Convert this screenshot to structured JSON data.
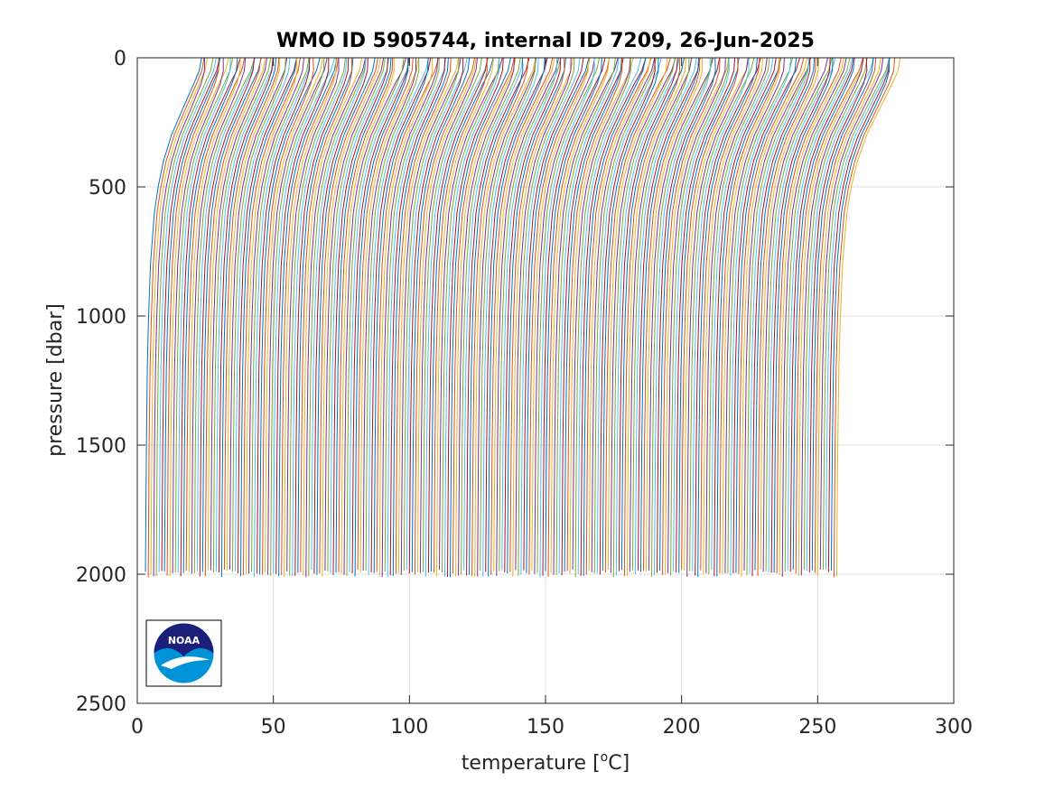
{
  "chart_data": {
    "type": "line",
    "title": "WMO ID 5905744, internal ID 7209, 26-Jun-2025",
    "xlabel_prefix": "temperature [",
    "xlabel_sup": "o",
    "xlabel_suffix": "C]",
    "ylabel": "pressure [dbar]",
    "xlim": [
      0,
      300
    ],
    "ylim": [
      0,
      2500
    ],
    "y_reversed": true,
    "grid": true,
    "x_ticks": [
      0,
      50,
      100,
      150,
      200,
      250,
      300
    ],
    "y_ticks": [
      0,
      500,
      1000,
      1500,
      2000,
      2500
    ],
    "x_tick_labels": [
      "0",
      "50",
      "100",
      "150",
      "200",
      "250",
      "300"
    ],
    "y_tick_labels": [
      "0",
      "500",
      "1000",
      "1500",
      "2000",
      "2500"
    ],
    "profiles": {
      "count": 255,
      "deep_start_temperature": 3.0,
      "deep_end_temperature": 257.0,
      "surface_start_temperature": 23.0,
      "surface_end_temperature": 280.0,
      "max_pressure": 2000,
      "representative_profile": {
        "pressure": [
          0,
          50,
          100,
          200,
          300,
          400,
          500,
          600,
          800,
          1000,
          1200,
          1500,
          2000
        ],
        "temperature": [
          20.0,
          19.5,
          18.0,
          14.5,
          11.0,
          8.5,
          6.8,
          5.6,
          4.4,
          3.8,
          3.4,
          3.1,
          2.8
        ]
      }
    },
    "series_colors": [
      "#0072bd",
      "#d95319",
      "#edb120",
      "#7e2f8e",
      "#77ac30",
      "#4dbeee",
      "#a2142f"
    ],
    "logo": {
      "label": "NOAA",
      "position": "bottom-left"
    }
  }
}
